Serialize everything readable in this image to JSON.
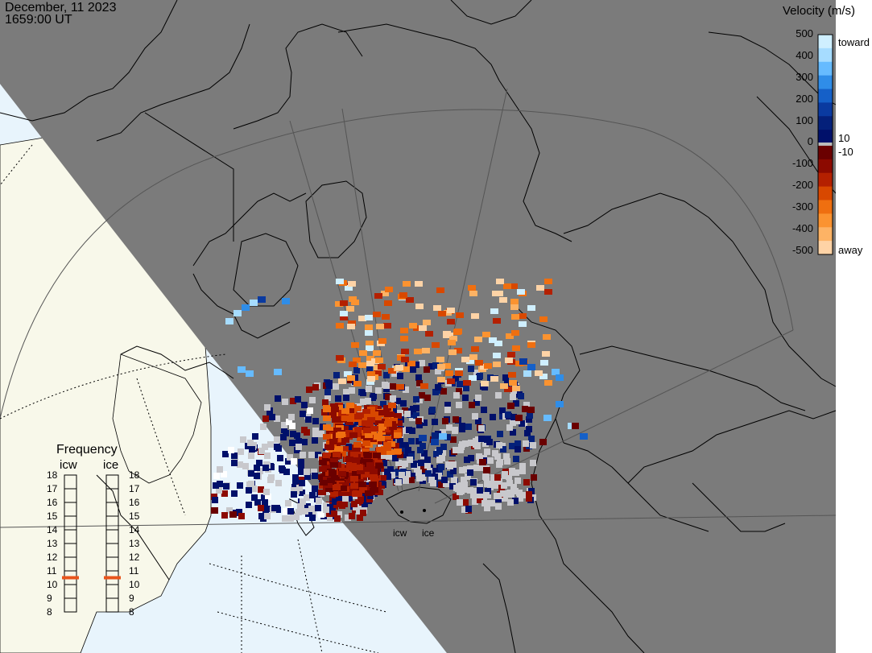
{
  "header": {
    "date": "December, 11 2023",
    "time": "1659:00 UT"
  },
  "colorbar": {
    "title": "Velocity (m/s)",
    "toward_label": "toward",
    "away_label": "away",
    "ticks": [
      "500",
      "400",
      "300",
      "200",
      "100",
      "0",
      "-100",
      "-200",
      "-300",
      "-400",
      "-500"
    ],
    "near_zero_labels": [
      "10",
      "-10"
    ],
    "colors_toward": [
      "#cfefff",
      "#a6dcff",
      "#66bbff",
      "#2f8de8",
      "#1560c8",
      "#0a3aa0",
      "#04207a",
      "#00106a"
    ],
    "colors_away": [
      "#6a0000",
      "#8c0a00",
      "#b42000",
      "#d84800",
      "#ef6f10",
      "#fb9330",
      "#fdb365",
      "#fed3a6"
    ]
  },
  "frequency": {
    "title": "Frequency",
    "columns": [
      {
        "label": "icw",
        "selected": 10.5
      },
      {
        "label": "ice",
        "selected": 10.5
      }
    ],
    "levels": [
      "18",
      "17",
      "16",
      "15",
      "14",
      "13",
      "12",
      "11",
      "10",
      "9",
      "8"
    ]
  },
  "sites": [
    "icw",
    "ice"
  ],
  "colors": {
    "night": "#7b7b7b",
    "day_ocean": "#e8f4fc",
    "day_land": "#f8f8ea",
    "ground_scatter": "#c8c8cc",
    "freq_marker": "#e8541c"
  }
}
